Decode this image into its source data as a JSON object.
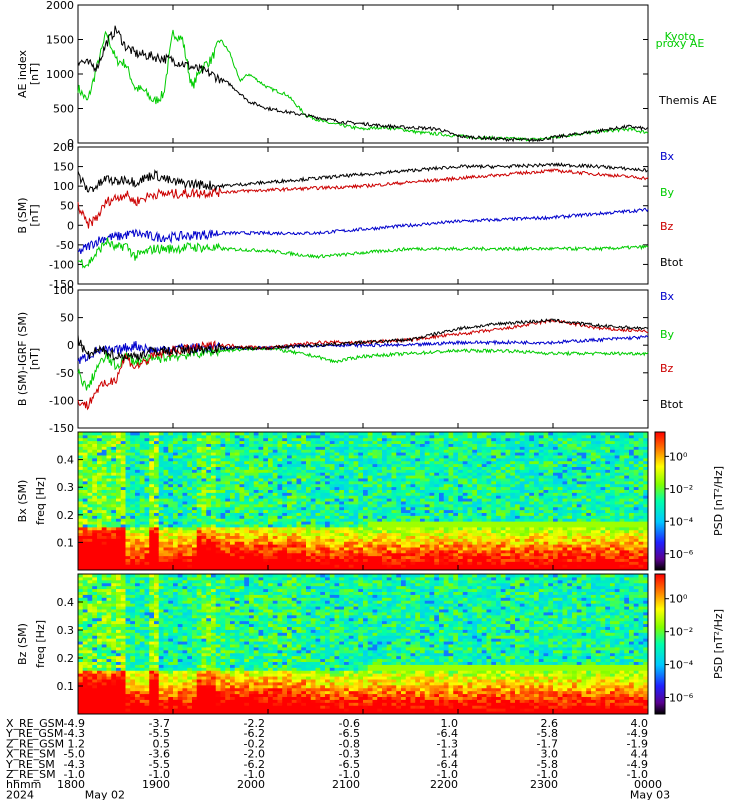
{
  "chart_data": [
    {
      "type": "line",
      "panel": "ae",
      "ylabel": [
        "AE index",
        "[nT]"
      ],
      "ylim": [
        0,
        2000
      ],
      "yticks": [
        0,
        500,
        1000,
        1500,
        2000
      ],
      "xlim": [
        0,
        6
      ],
      "series": [
        {
          "name": "Kyoto proxy AE",
          "label_lines": [
            "Kyoto",
            "proxy AE"
          ],
          "color": "#00cc00",
          "x": [
            0,
            0.1,
            0.2,
            0.3,
            0.4,
            0.5,
            0.6,
            0.7,
            0.8,
            0.9,
            1.0,
            1.1,
            1.2,
            1.3,
            1.4,
            1.5,
            1.6,
            1.7,
            1.8,
            1.9,
            2.0,
            2.2,
            2.4,
            2.6,
            2.8,
            3.0,
            3.2,
            3.4,
            3.6,
            3.8,
            4.0,
            4.2,
            4.4,
            4.6,
            4.8,
            5.0,
            5.2,
            5.4,
            5.6,
            5.8,
            6.0
          ],
          "y": [
            800,
            600,
            1100,
            1600,
            1200,
            1150,
            800,
            750,
            600,
            700,
            1600,
            1500,
            800,
            1100,
            1200,
            1500,
            1300,
            900,
            1000,
            900,
            800,
            700,
            400,
            300,
            250,
            200,
            230,
            200,
            150,
            130,
            100,
            80,
            70,
            60,
            50,
            80,
            120,
            150,
            180,
            200,
            150
          ]
        },
        {
          "name": "Themis AE",
          "label_lines": [
            "Themis AE"
          ],
          "color": "#000000",
          "x": [
            0,
            0.2,
            0.3,
            0.4,
            0.5,
            0.6,
            0.8,
            1.0,
            1.2,
            1.4,
            1.6,
            1.8,
            2.0,
            2.2,
            2.4,
            2.6,
            2.8,
            3.0,
            3.2,
            3.4,
            3.6,
            3.8,
            4.0,
            4.2,
            4.4,
            4.6,
            4.8,
            5.0,
            5.2,
            5.4,
            5.6,
            5.8,
            6.0
          ],
          "y": [
            1200,
            1100,
            1450,
            1650,
            1400,
            1300,
            1250,
            1200,
            1100,
            1000,
            850,
            600,
            500,
            450,
            400,
            350,
            300,
            280,
            250,
            230,
            220,
            200,
            100,
            80,
            60,
            50,
            40,
            80,
            120,
            160,
            200,
            240,
            200
          ]
        }
      ],
      "labels": [
        "Kyoto",
        "proxy AE",
        "Themis AE"
      ]
    },
    {
      "type": "line",
      "panel": "b_sm",
      "ylabel": [
        "B  (SM)",
        "[nT]"
      ],
      "ylim": [
        -150,
        200
      ],
      "yticks": [
        -150,
        -100,
        -50,
        0,
        50,
        100,
        150,
        200
      ],
      "xlim": [
        0,
        6
      ],
      "series": [
        {
          "name": "Bx",
          "color": "#0000cc",
          "x": [
            0,
            0.2,
            0.3,
            0.4,
            0.6,
            0.8,
            1.0,
            1.5,
            2.0,
            2.5,
            3.0,
            3.5,
            4.0,
            4.5,
            5.0,
            5.5,
            6.0
          ],
          "y": [
            -70,
            -40,
            -30,
            -30,
            -20,
            -30,
            -30,
            -20,
            -20,
            -20,
            -10,
            0,
            10,
            15,
            20,
            30,
            40
          ]
        },
        {
          "name": "By",
          "color": "#00cc00",
          "x": [
            0,
            0.1,
            0.2,
            0.3,
            0.4,
            0.5,
            0.6,
            0.8,
            1.0,
            1.2,
            1.5,
            2.0,
            2.5,
            2.8,
            3.0,
            3.5,
            4.0,
            4.5,
            5.0,
            5.5,
            6.0
          ],
          "y": [
            -90,
            -100,
            -70,
            -40,
            -60,
            -50,
            -80,
            -60,
            -60,
            -55,
            -60,
            -65,
            -80,
            -75,
            -70,
            -60,
            -60,
            -60,
            -60,
            -60,
            -55
          ]
        },
        {
          "name": "Bz",
          "color": "#cc0000",
          "x": [
            0,
            0.1,
            0.2,
            0.3,
            0.4,
            0.5,
            0.6,
            0.8,
            1.0,
            1.5,
            2.0,
            2.5,
            3.0,
            3.5,
            4.0,
            4.5,
            5.0,
            5.5,
            6.0
          ],
          "y": [
            50,
            0,
            20,
            60,
            70,
            80,
            60,
            80,
            80,
            85,
            90,
            95,
            100,
            110,
            120,
            130,
            140,
            130,
            120
          ]
        },
        {
          "name": "Btot",
          "color": "#000000",
          "x": [
            0,
            0.1,
            0.2,
            0.3,
            0.4,
            0.5,
            0.6,
            0.8,
            1.0,
            1.5,
            2.0,
            2.5,
            3.0,
            3.5,
            4.0,
            4.5,
            5.0,
            5.5,
            6.0
          ],
          "y": [
            130,
            90,
            100,
            120,
            110,
            120,
            110,
            130,
            110,
            100,
            110,
            120,
            130,
            140,
            150,
            150,
            155,
            150,
            140
          ]
        }
      ],
      "labels": [
        "Bx",
        "By",
        "Bz",
        "Btot"
      ]
    },
    {
      "type": "line",
      "panel": "b_minus_igrf",
      "ylabel": [
        "B (SM)-IGRF (SM)",
        "[nT]"
      ],
      "ylim": [
        -150,
        100
      ],
      "yticks": [
        -150,
        -100,
        -50,
        0,
        50,
        100
      ],
      "xlim": [
        0,
        6
      ],
      "series": [
        {
          "name": "Bx",
          "color": "#0000cc",
          "x": [
            0,
            0.2,
            0.4,
            0.6,
            0.8,
            1.0,
            1.5,
            2.0,
            2.5,
            3.0,
            3.5,
            4.0,
            4.5,
            5.0,
            5.5,
            6.0
          ],
          "y": [
            -30,
            -10,
            -10,
            0,
            -10,
            -5,
            -5,
            -5,
            0,
            0,
            0,
            5,
            5,
            5,
            10,
            15
          ]
        },
        {
          "name": "By",
          "color": "#00cc00",
          "x": [
            0,
            0.1,
            0.2,
            0.3,
            0.4,
            0.5,
            0.6,
            0.8,
            1.0,
            1.5,
            2.0,
            2.5,
            2.7,
            3.0,
            3.5,
            4.0,
            4.5,
            5.0,
            5.5,
            6.0
          ],
          "y": [
            -50,
            -80,
            -40,
            -20,
            -40,
            -20,
            -30,
            -25,
            -20,
            -10,
            -5,
            -20,
            -30,
            -20,
            -15,
            -10,
            -10,
            -15,
            -15,
            -15
          ]
        },
        {
          "name": "Bz",
          "color": "#cc0000",
          "x": [
            0,
            0.1,
            0.2,
            0.3,
            0.4,
            0.5,
            0.6,
            0.8,
            1.0,
            1.5,
            2.0,
            2.5,
            3.0,
            3.5,
            4.0,
            4.5,
            5.0,
            5.5,
            6.0
          ],
          "y": [
            -100,
            -110,
            -80,
            -70,
            -60,
            -20,
            -40,
            -20,
            -10,
            0,
            -5,
            5,
            5,
            10,
            20,
            30,
            45,
            30,
            25
          ]
        },
        {
          "name": "Btot",
          "color": "#000000",
          "x": [
            0,
            0.1,
            0.2,
            0.3,
            0.4,
            0.5,
            0.6,
            0.8,
            1.0,
            1.5,
            2.0,
            2.5,
            3.0,
            3.5,
            4.0,
            4.5,
            5.0,
            5.5,
            6.0
          ],
          "y": [
            10,
            -20,
            -10,
            -10,
            -20,
            -20,
            -20,
            -10,
            -10,
            -5,
            -5,
            0,
            5,
            10,
            30,
            40,
            45,
            35,
            30
          ]
        }
      ],
      "labels": [
        "Bx",
        "By",
        "Bz",
        "Btot"
      ]
    },
    {
      "type": "heatmap",
      "panel": "bx_spec",
      "ylabel": [
        "Bx (SM)",
        "freq   [Hz]"
      ],
      "ylim": [
        0,
        0.5
      ],
      "yticks": [
        0.1,
        0.2,
        0.3,
        0.4
      ],
      "colorbar_label": "PSD [nT²/Hz]",
      "colorbar_ticks": [
        "10⁰",
        "10⁻²",
        "10⁻⁴",
        "10⁻⁶"
      ],
      "colorbar_exp": [
        0,
        -2,
        -4,
        -6
      ]
    },
    {
      "type": "heatmap",
      "panel": "bz_spec",
      "ylabel": [
        "Bz (SM)",
        "freq   [Hz]"
      ],
      "ylim": [
        0,
        0.5
      ],
      "yticks": [
        0.1,
        0.2,
        0.3,
        0.4
      ],
      "colorbar_label": "PSD [nT²/Hz]",
      "colorbar_ticks": [
        "10⁰",
        "10⁻²",
        "10⁻⁴",
        "10⁻⁶"
      ],
      "colorbar_exp": [
        0,
        -2,
        -4,
        -6
      ]
    }
  ],
  "ephemeris": {
    "row_labels": [
      "X_RE_GSM",
      "Y_RE_GSM",
      "Z_RE_GSM",
      "X_RE_SM",
      "Y_RE_SM",
      "Z_RE_SM",
      "hhmm",
      "2024"
    ],
    "columns": [
      [
        "-4.9",
        "-4.3",
        "1.2",
        "-5.0",
        "-4.3",
        "-1.0",
        "1800",
        "May 02"
      ],
      [
        "-3.7",
        "-5.5",
        "0.5",
        "-3.6",
        "-5.5",
        "-1.0",
        "1900",
        ""
      ],
      [
        "-2.2",
        "-6.2",
        "-0.2",
        "-2.0",
        "-6.2",
        "-1.0",
        "2000",
        ""
      ],
      [
        "-0.6",
        "-6.5",
        "-0.8",
        "-0.3",
        "-6.5",
        "-1.0",
        "2100",
        ""
      ],
      [
        "1.0",
        "-6.4",
        "-1.3",
        "1.4",
        "-6.4",
        "-1.0",
        "2200",
        ""
      ],
      [
        "2.6",
        "-5.8",
        "-1.7",
        "3.0",
        "-5.8",
        "-1.0",
        "2300",
        ""
      ],
      [
        "4.0",
        "-4.9",
        "-1.9",
        "4.4",
        "-4.9",
        "-1.0",
        "0000",
        "May 03"
      ]
    ]
  }
}
